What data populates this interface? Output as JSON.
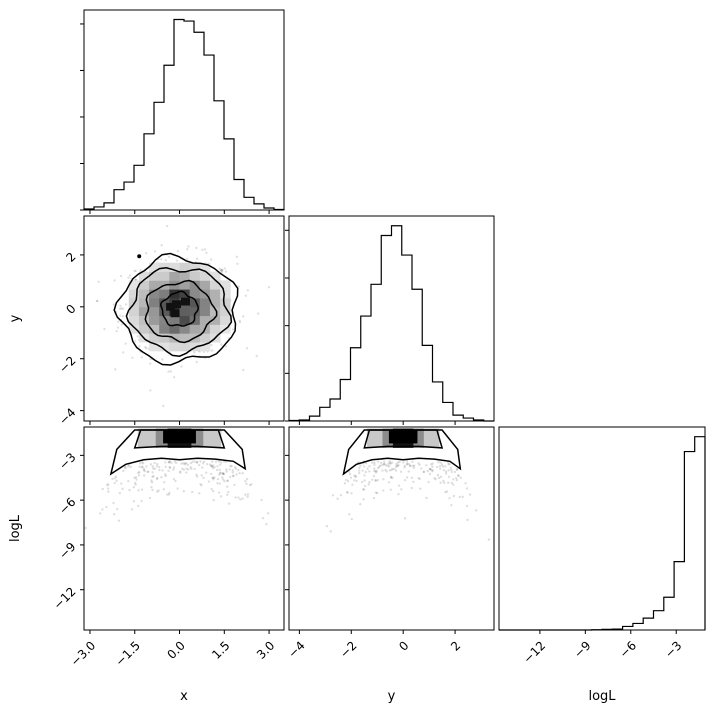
{
  "chart_data": {
    "type": "scatter",
    "subtype": "corner-plot",
    "parameters": [
      "x",
      "y",
      "logL"
    ],
    "axis_labels": {
      "x": "x",
      "y": "y",
      "logL": "logL"
    },
    "ranges": {
      "x": [
        -3.2,
        3.5
      ],
      "y": [
        -4.4,
        3.5
      ],
      "logL": [
        -14.7,
        -1.1
      ]
    },
    "ticks": {
      "x": {
        "values": [
          -3.0,
          -1.5,
          0.0,
          1.5,
          3.0
        ],
        "labels": [
          "−3.0",
          "−1.5",
          "0.0",
          "1.5",
          "3.0"
        ]
      },
      "y": {
        "values": [
          -4,
          -2,
          0,
          2
        ],
        "labels": [
          "−4",
          "−2",
          "0",
          "2"
        ]
      },
      "logL": {
        "values": [
          -12,
          -9,
          -6,
          -3
        ],
        "labels": [
          "−12",
          "−9",
          "−6",
          "−3"
        ]
      }
    },
    "histograms": {
      "x": {
        "bin_edges": [
          -3.2,
          -2.865,
          -2.53,
          -2.195,
          -1.86,
          -1.525,
          -1.19,
          -0.855,
          -0.52,
          -0.185,
          0.15,
          0.485,
          0.82,
          1.155,
          1.49,
          1.825,
          2.16,
          2.495,
          2.83,
          3.165,
          3.5
        ],
        "counts": [
          2,
          6,
          14,
          40,
          55,
          88,
          150,
          212,
          285,
          375,
          372,
          350,
          305,
          215,
          140,
          60,
          25,
          12,
          4,
          1
        ]
      },
      "y": {
        "bin_edges": [
          -4.4,
          -4.005,
          -3.61,
          -3.215,
          -2.82,
          -2.425,
          -2.03,
          -1.635,
          -1.24,
          -0.845,
          -0.45,
          -0.055,
          0.34,
          0.735,
          1.13,
          1.525,
          1.92,
          2.315,
          2.71,
          3.105,
          3.5
        ],
        "counts": [
          1,
          2,
          10,
          28,
          45,
          85,
          150,
          215,
          280,
          380,
          400,
          340,
          270,
          155,
          80,
          38,
          12,
          6,
          2,
          0
        ]
      },
      "logL": {
        "bin_edges": [
          -14.7,
          -14.02,
          -13.34,
          -12.66,
          -11.98,
          -11.3,
          -10.62,
          -9.94,
          -9.26,
          -8.58,
          -7.9,
          -7.22,
          -6.54,
          -5.86,
          -5.18,
          -4.5,
          -3.82,
          -3.14,
          -2.46,
          -1.78,
          -1.1
        ],
        "counts": [
          0,
          0,
          0,
          0,
          0,
          0,
          0,
          0,
          0,
          1,
          2,
          3,
          12,
          22,
          40,
          65,
          110,
          230,
          600,
          650
        ]
      }
    },
    "hist2d": {
      "x_vs_y": {
        "center": [
          0,
          0
        ],
        "contour_levels": [
          {
            "x": [
              -0.6,
              0.6
            ],
            "y": [
              -0.75,
              0.55
            ]
          },
          {
            "x": [
              -1.15,
              1.15
            ],
            "y": [
              -1.3,
              0.95
            ]
          },
          {
            "x": [
              -1.65,
              1.65
            ],
            "y": [
              -1.75,
              1.5
            ]
          },
          {
            "x": [
              -2.0,
              1.95
            ],
            "y": [
              -2.15,
              1.9
            ]
          }
        ]
      },
      "x_vs_logL": {
        "center_x": 0,
        "peak_logL": -1.6,
        "outer_logL": -4.2
      },
      "y_vs_logL": {
        "center_y": 0,
        "peak_logL": -1.6,
        "outer_logL": -4.2
      }
    }
  }
}
